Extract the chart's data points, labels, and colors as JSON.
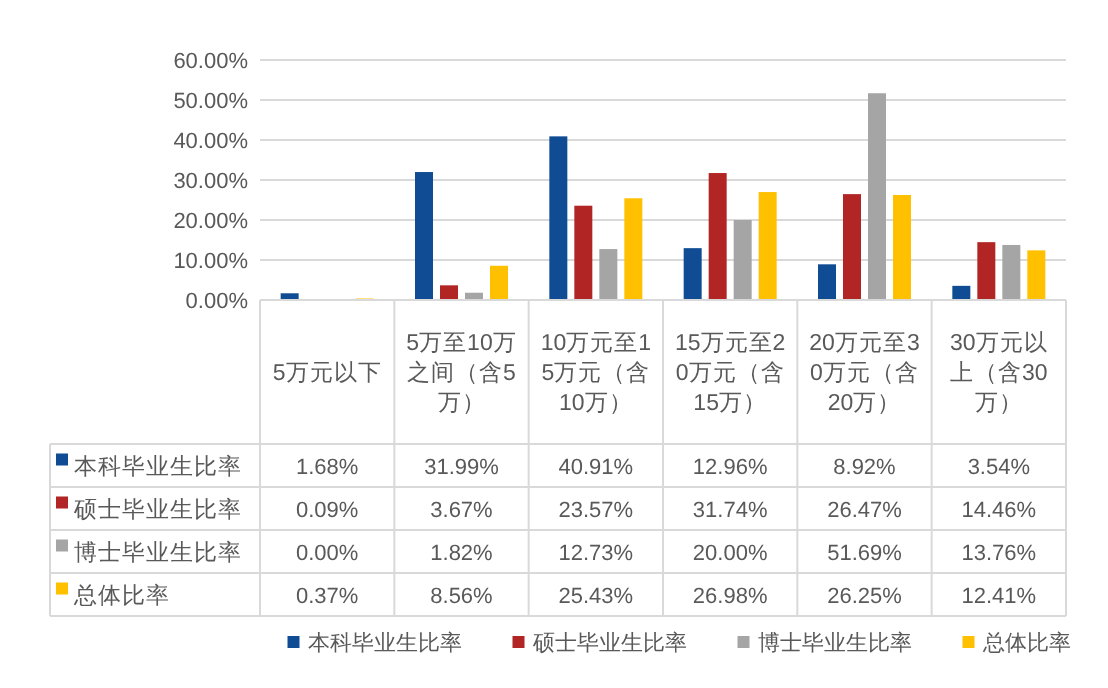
{
  "chart_data": {
    "type": "bar",
    "categories": [
      "5万元以下",
      "5万至10万之间（含5万）",
      "10万元至15万元（含10万）",
      "15万元至20万元（含15万）",
      "20万元至30万元（含20万）",
      "30万元以上（含30万）"
    ],
    "series": [
      {
        "name": "本科毕业生比率",
        "color": "#0f4c93",
        "values": [
          1.68,
          31.99,
          40.91,
          12.96,
          8.92,
          3.54
        ],
        "value_labels": [
          "1.68%",
          "31.99%",
          "40.91%",
          "12.96%",
          "8.92%",
          "3.54%"
        ]
      },
      {
        "name": "硕士毕业生比率",
        "color": "#b22525",
        "values": [
          0.09,
          3.67,
          23.57,
          31.74,
          26.47,
          14.46
        ],
        "value_labels": [
          "0.09%",
          "3.67%",
          "23.57%",
          "31.74%",
          "26.47%",
          "14.46%"
        ]
      },
      {
        "name": "博士毕业生比率",
        "color": "#a5a5a5",
        "values": [
          0.0,
          1.82,
          12.73,
          20.0,
          51.69,
          13.76
        ],
        "value_labels": [
          "0.00%",
          "1.82%",
          "12.73%",
          "20.00%",
          "51.69%",
          "13.76%"
        ]
      },
      {
        "name": "总体比率",
        "color": "#ffc000",
        "values": [
          0.37,
          8.56,
          25.43,
          26.98,
          26.25,
          12.41
        ],
        "value_labels": [
          "0.37%",
          "8.56%",
          "25.43%",
          "26.98%",
          "26.25%",
          "12.41%"
        ]
      }
    ],
    "ylim": [
      0,
      60
    ],
    "yticks": [
      {
        "value": 0,
        "label": "0.00%"
      },
      {
        "value": 10,
        "label": "10.00%"
      },
      {
        "value": 20,
        "label": "20.00%"
      },
      {
        "value": 30,
        "label": "30.00%"
      },
      {
        "value": 40,
        "label": "40.00%"
      },
      {
        "value": 50,
        "label": "50.00%"
      },
      {
        "value": 60,
        "label": "60.00%"
      }
    ],
    "grid": "y",
    "legend": "bottom"
  }
}
